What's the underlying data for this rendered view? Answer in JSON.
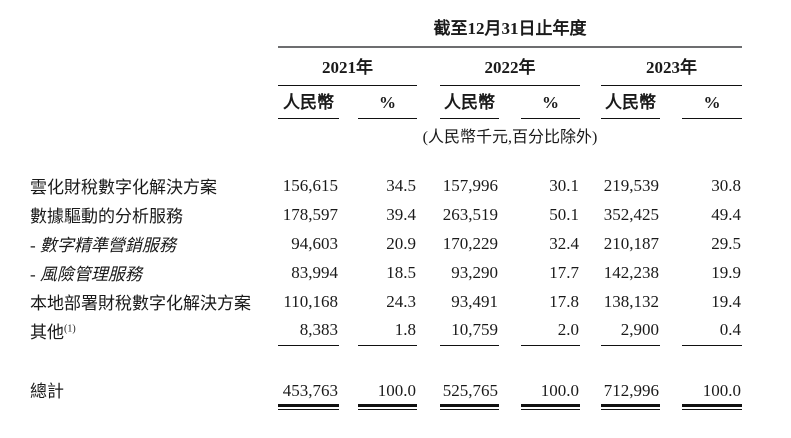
{
  "table": {
    "period_header": "截至12月31日止年度",
    "years": [
      "2021年",
      "2022年",
      "2023年"
    ],
    "sub_headers": {
      "currency": "人民幣",
      "percent": "%"
    },
    "unit_note": "(人民幣千元,百分比除外)",
    "rows": [
      {
        "label": "雲化財稅數字化解決方案",
        "values": [
          "156,615",
          "34.5",
          "157,996",
          "30.1",
          "219,539",
          "30.8"
        ]
      },
      {
        "label": "數據驅動的分析服務",
        "values": [
          "178,597",
          "39.4",
          "263,519",
          "50.1",
          "352,425",
          "49.4"
        ]
      },
      {
        "label": "- 數字精準營銷服務",
        "values": [
          "94,603",
          "20.9",
          "170,229",
          "32.4",
          "210,187",
          "29.5"
        ]
      },
      {
        "label": "- 風險管理服務",
        "values": [
          "83,994",
          "18.5",
          "93,290",
          "17.7",
          "142,238",
          "19.9"
        ]
      },
      {
        "label": "本地部署財稅數字化解決方案",
        "values": [
          "110,168",
          "24.3",
          "93,491",
          "17.8",
          "138,132",
          "19.4"
        ]
      },
      {
        "label": "其他",
        "note_ref": "(1)",
        "values": [
          "8,383",
          "1.8",
          "10,759",
          "2.0",
          "2,900",
          "0.4"
        ]
      }
    ],
    "total": {
      "label": "總計",
      "values": [
        "453,763",
        "100.0",
        "525,765",
        "100.0",
        "712,996",
        "100.0"
      ]
    }
  }
}
